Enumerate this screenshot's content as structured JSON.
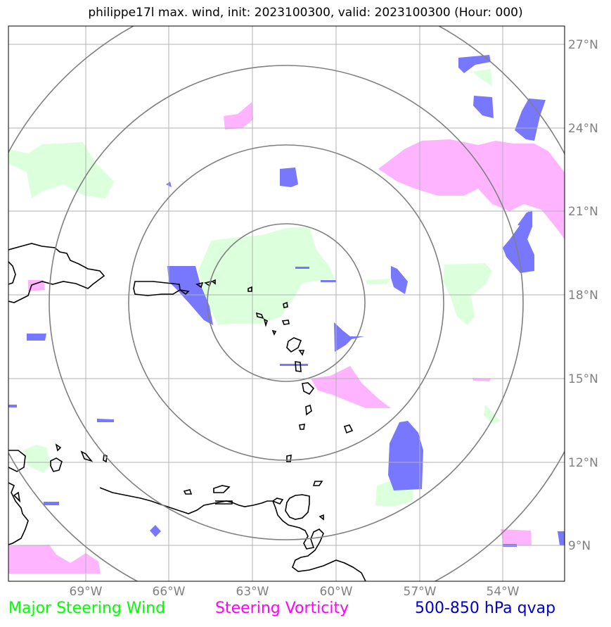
{
  "title": "philippe17l max. wind, init: 2023100300, valid: 2023100300 (Hour: 000)",
  "lon_ticks": [
    "69°W",
    "66°W",
    "63°W",
    "60°W",
    "57°W",
    "54°W"
  ],
  "lat_ticks": [
    "27°N",
    "24°N",
    "21°N",
    "18°N",
    "15°N",
    "12°N",
    "9°N"
  ],
  "legend": {
    "wind": "Major Steering Wind",
    "vorticity": "Steering Vorticity",
    "qvap": "500-850 hPa qvap"
  },
  "colors": {
    "wind": "#00ff00",
    "vorticity": "#ff00ff",
    "qvap": "#0000cc",
    "wind_fill": "#dcffdc",
    "vort_fill": "#ffb4ff",
    "qvap_fill": "#7878ff",
    "range_rings": "#808080",
    "grid": "#b0b0b0"
  },
  "map": {
    "lon_range": [
      -71.8,
      -52.0
    ],
    "lat_range": [
      7.8,
      27.7
    ],
    "storm_center": {
      "lon": -61.9,
      "lat": 17.9
    },
    "range_rings_deg": [
      2.7,
      5.5,
      8.3,
      11.1
    ]
  }
}
